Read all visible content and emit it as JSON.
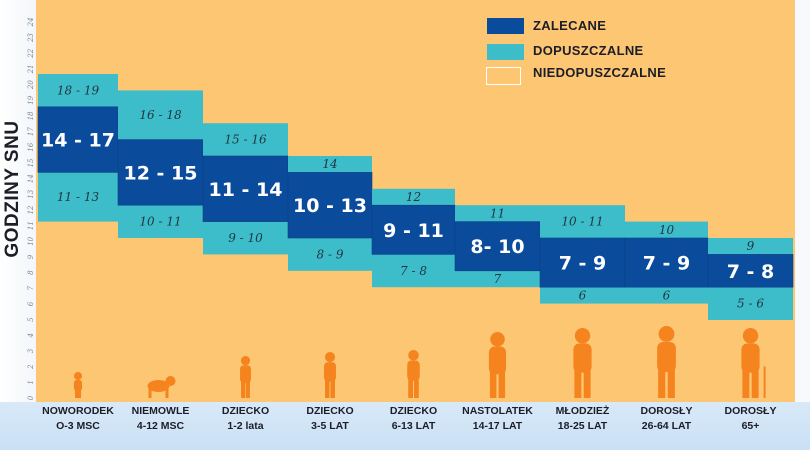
{
  "chart_data": {
    "type": "bar",
    "ylabel": "GODZINY SNU",
    "ylim": [
      0,
      24
    ],
    "yticks": [
      "0",
      "1",
      "2",
      "3",
      "4",
      "5",
      "6",
      "7",
      "8",
      "9",
      "10",
      "11",
      "12",
      "13",
      "14",
      "15",
      "16",
      "17",
      "18",
      "19",
      "20",
      "21",
      "22",
      "23",
      "24"
    ],
    "legend": [
      {
        "label": "ZALECANE",
        "color": "#0b4b9c"
      },
      {
        "label": "DOPUSZCZALNE",
        "color": "#3dbdc9"
      },
      {
        "label": "NIEDOPUSZCZALNE",
        "color": "#fcc673"
      }
    ],
    "legend_position": "top-right",
    "categories": [
      {
        "line1": "NOWORODEK",
        "line2": "O-3 MSC",
        "upper": [
          18,
          19
        ],
        "upper_label": "18 - 19",
        "recommended": [
          14,
          17
        ],
        "rec_label": "14 - 17",
        "lower": [
          11,
          13
        ],
        "lower_label": "11 - 13"
      },
      {
        "line1": "NIEMOWLE",
        "line2": "4-12 MSC",
        "upper": [
          16,
          18
        ],
        "upper_label": "16 - 18",
        "recommended": [
          12,
          15
        ],
        "rec_label": "12 - 15",
        "lower": [
          10,
          11
        ],
        "lower_label": "10 - 11"
      },
      {
        "line1": "DZIECKO",
        "line2": "1-2 lata",
        "upper": [
          15,
          16
        ],
        "upper_label": "15 - 16",
        "recommended": [
          11,
          14
        ],
        "rec_label": "11 - 14",
        "lower": [
          9,
          10
        ],
        "lower_label": "9 - 10"
      },
      {
        "line1": "DZIECKO",
        "line2": "3-5 LAT",
        "upper": [
          14,
          14
        ],
        "upper_label": "14",
        "recommended": [
          10,
          13
        ],
        "rec_label": "10 - 13",
        "lower": [
          8,
          9
        ],
        "lower_label": "8 - 9"
      },
      {
        "line1": "DZIECKO",
        "line2": "6-13 LAT",
        "upper": [
          12,
          12
        ],
        "upper_label": "12",
        "recommended": [
          9,
          11
        ],
        "rec_label": "9 - 11",
        "lower": [
          7,
          8
        ],
        "lower_label": "7 - 8"
      },
      {
        "line1": "NASTOLATEK",
        "line2": "14-17 LAT",
        "upper": [
          11,
          11
        ],
        "upper_label": "11",
        "recommended": [
          8,
          10
        ],
        "rec_label": "8- 10",
        "lower": [
          7,
          7
        ],
        "lower_label": "7"
      },
      {
        "line1": "MŁODZIEŻ",
        "line2": "18-25 LAT",
        "upper": [
          10,
          11
        ],
        "upper_label": "10 - 11",
        "recommended": [
          7,
          9
        ],
        "rec_label": "7 - 9",
        "lower": [
          6,
          6
        ],
        "lower_label": "6"
      },
      {
        "line1": "DOROSŁY",
        "line2": "26-64 LAT",
        "upper": [
          10,
          10
        ],
        "upper_label": "10",
        "recommended": [
          7,
          9
        ],
        "rec_label": "7 - 9",
        "lower": [
          6,
          6
        ],
        "lower_label": "6"
      },
      {
        "line1": "DOROSŁY",
        "line2": "65+",
        "upper": [
          9,
          9
        ],
        "upper_label": "9",
        "recommended": [
          7,
          8
        ],
        "rec_label": "7 - 8",
        "lower": [
          5,
          6
        ],
        "lower_label": "5 - 6"
      }
    ],
    "figure_color": "#f5841f"
  }
}
